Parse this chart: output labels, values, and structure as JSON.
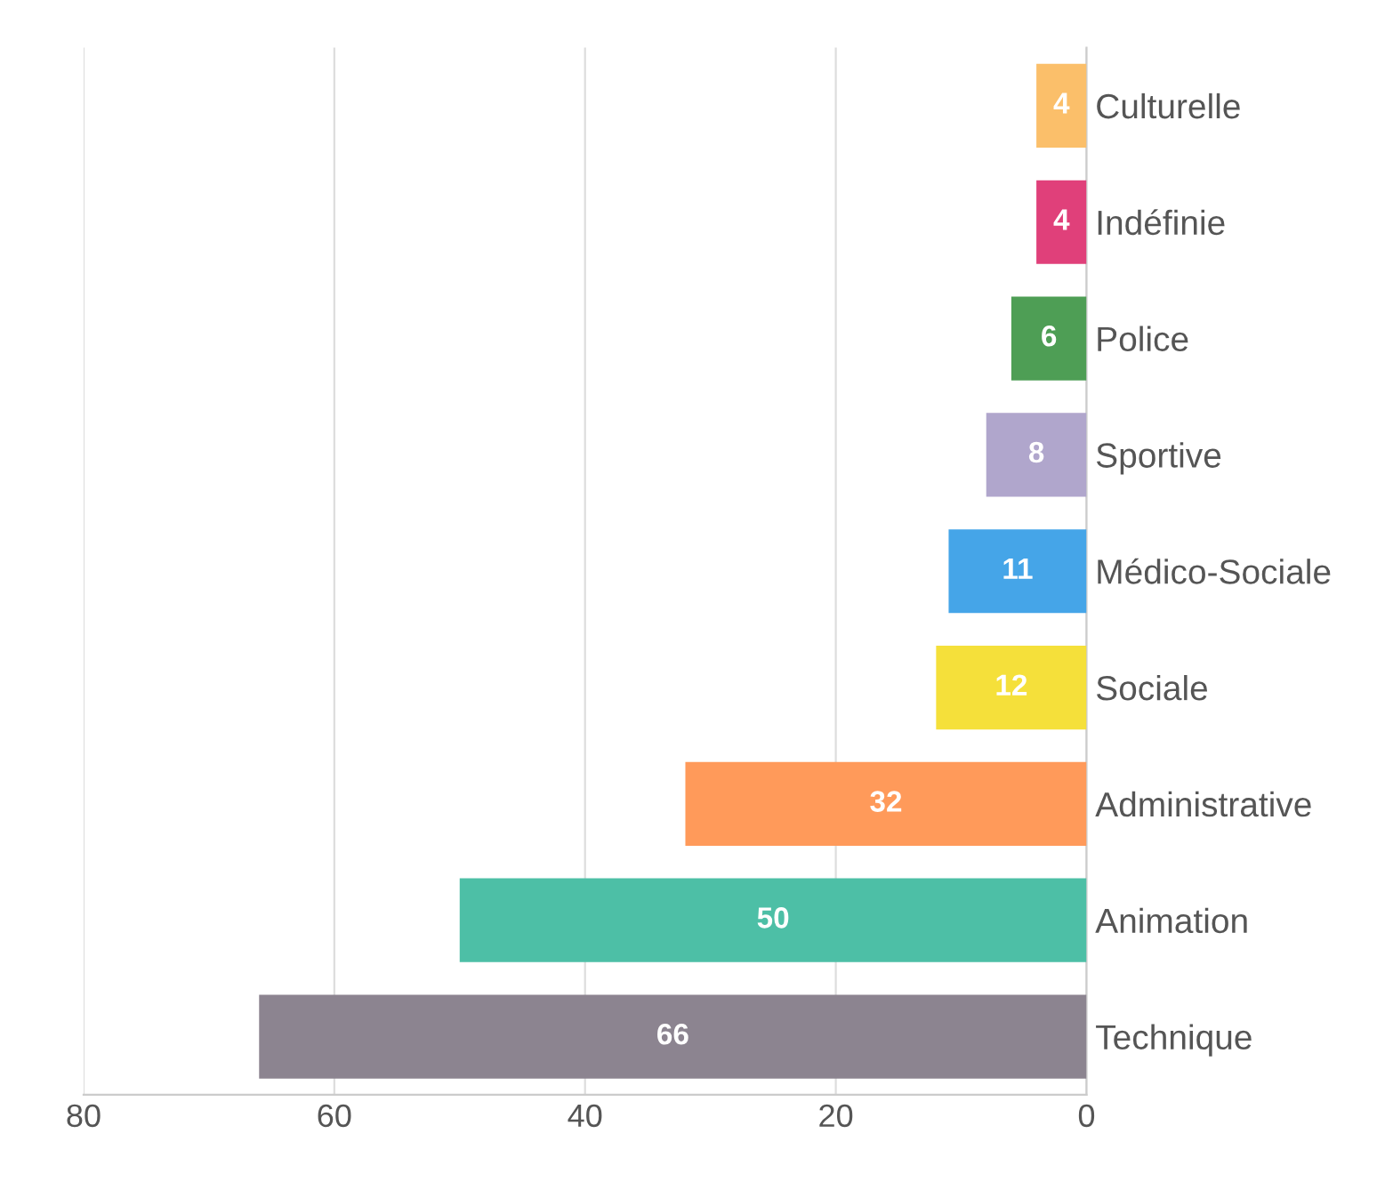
{
  "chart_data": {
    "type": "bar",
    "orientation": "horizontal",
    "categories": [
      "Culturelle",
      "Indéfinie",
      "Police",
      "Sportive",
      "Médico-Sociale",
      "Sociale",
      "Administrative",
      "Animation",
      "Technique"
    ],
    "values": [
      4,
      4,
      6,
      8,
      11,
      12,
      32,
      50,
      66
    ],
    "colors": [
      "#fbbf6a",
      "#e0407a",
      "#4e9e55",
      "#b0a6cc",
      "#45a5e8",
      "#f5e03a",
      "#ff9a5a",
      "#4dbfa6",
      "#8c8490"
    ],
    "xlim": [
      80,
      0
    ],
    "xticks": [
      0,
      20,
      40,
      60,
      80
    ],
    "grid": "x",
    "data_labels": true
  }
}
